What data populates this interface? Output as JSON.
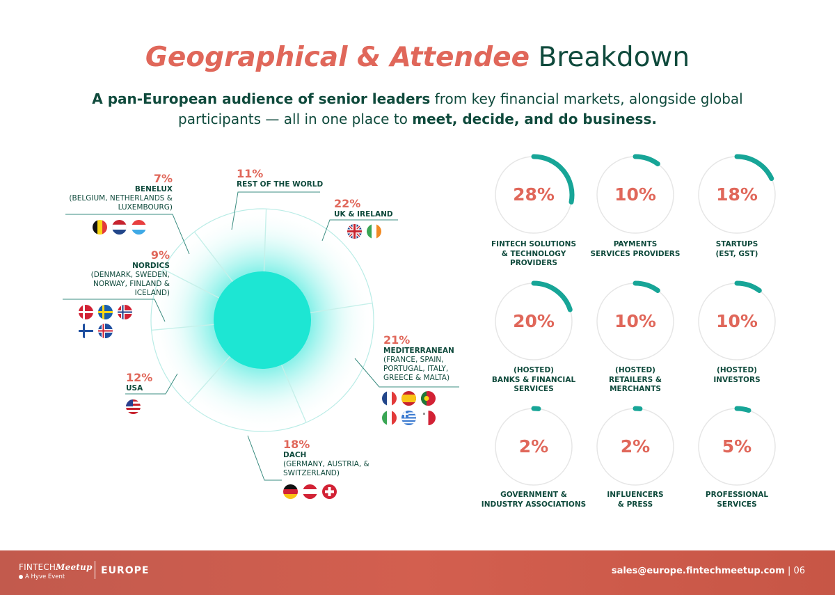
{
  "header": {
    "title_accent": "Geographical & Attendee",
    "title_plain": "Breakdown",
    "sub_bold1": "A pan-European audience of senior leaders",
    "sub_text1": " from key financial markets, alongside global participants — all in one place to ",
    "sub_bold2": "meet, decide, and do business."
  },
  "chart_data": [
    {
      "type": "pie",
      "title": "",
      "slices": [
        {
          "label": "UK & IRELAND",
          "value": 22,
          "percent_label": "22%",
          "detail": ""
        },
        {
          "label": "MEDITERRANEAN",
          "value": 21,
          "percent_label": "21%",
          "detail": "(FRANCE, SPAIN, PORTUGAL, ITALY, GREECE & MALTA)"
        },
        {
          "label": "DACH",
          "value": 18,
          "percent_label": "18%",
          "detail": "(GERMANY, AUSTRIA, & SWITZERLAND)"
        },
        {
          "label": "USA",
          "value": 12,
          "percent_label": "12%",
          "detail": ""
        },
        {
          "label": "NORDICS",
          "value": 9,
          "percent_label": "9%",
          "detail": "(DENMARK, SWEDEN, NORWAY, FINLAND & ICELAND)"
        },
        {
          "label": "BENELUX",
          "value": 7,
          "percent_label": "7%",
          "detail": "(BELGIUM, NETHERLANDS & LUXEMBOURG)"
        },
        {
          "label": "REST OF THE WORLD",
          "value": 11,
          "percent_label": "11%",
          "detail": ""
        }
      ]
    },
    {
      "type": "gauge",
      "title": "",
      "items": [
        {
          "label": "FINTECH SOLUTIONS\n& TECHNOLOGY\nPROVIDERS",
          "value": 28,
          "percent_label": "28%"
        },
        {
          "label": "PAYMENTS\nSERVICES PROVIDERS",
          "value": 10,
          "percent_label": "10%"
        },
        {
          "label": "STARTUPS\n(EST, GST)",
          "value": 18,
          "percent_label": "18%"
        },
        {
          "label": "(HOSTED)\nBANKS & FINANCIAL\nSERVICES",
          "value": 20,
          "percent_label": "20%"
        },
        {
          "label": "(HOSTED)\nRETAILERS &\nMERCHANTS",
          "value": 10,
          "percent_label": "10%"
        },
        {
          "label": "(HOSTED)\nINVESTORS",
          "value": 10,
          "percent_label": "10%"
        },
        {
          "label": "GOVERNMENT &\nINDUSTRY ASSOCIATIONS",
          "value": 2,
          "percent_label": "2%"
        },
        {
          "label": "INFLUENCERS\n& PRESS",
          "value": 2,
          "percent_label": "2%"
        },
        {
          "label": "PROFESSIONAL\nSERVICES",
          "value": 5,
          "percent_label": "5%"
        }
      ]
    }
  ],
  "flags": {
    "benelux": [
      "belgium-flag",
      "netherlands-flag",
      "luxembourg-flag"
    ],
    "nordics": [
      "denmark-flag",
      "sweden-flag",
      "norway-flag",
      "finland-flag",
      "iceland-flag"
    ],
    "usa": [
      "usa-flag"
    ],
    "uk_ireland": [
      "uk-flag",
      "ireland-flag"
    ],
    "mediterranean": [
      "france-flag",
      "spain-flag",
      "portugal-flag",
      "italy-flag",
      "greece-flag",
      "malta-flag"
    ],
    "dach": [
      "germany-flag",
      "austria-flag",
      "switzerland-flag"
    ]
  },
  "footer": {
    "logo_main": "FINTECH",
    "logo_script": "Meetup",
    "logo_tagline": "A Hyve Event",
    "region": "EUROPE",
    "email": "sales@europe.fintechmeetup.com",
    "page": "| 06"
  },
  "colors": {
    "accent": "#e0675a",
    "dark_green": "#0f4a3c",
    "teal": "#17a597",
    "glow": "#1de9d6",
    "footer": "#c95a4c"
  }
}
